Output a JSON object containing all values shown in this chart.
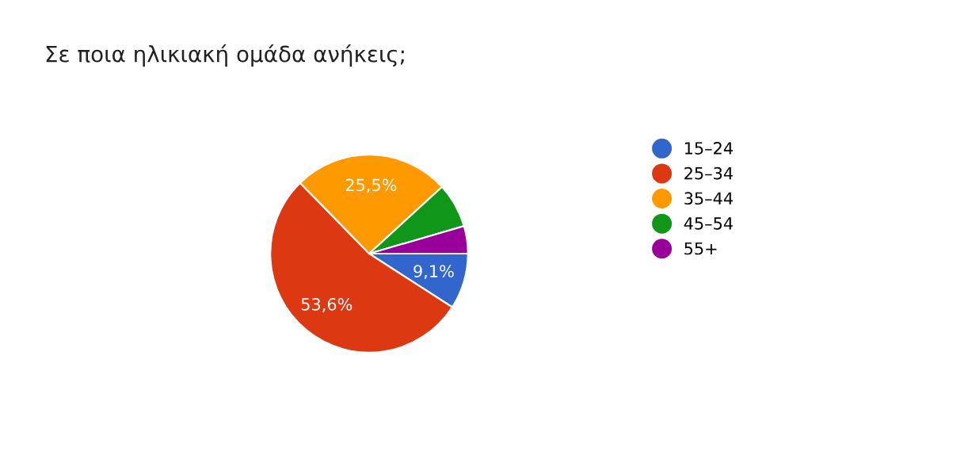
{
  "chart_data": {
    "type": "pie",
    "title": "Σε ποια ηλικιακή ομάδα ανήκεις;",
    "categories": [
      "15–24",
      "25–34",
      "35–44",
      "45–54",
      "55+"
    ],
    "values": [
      9.1,
      53.6,
      25.5,
      7.3,
      4.5
    ],
    "colors": [
      "#3366cc",
      "#dc3912",
      "#ff9900",
      "#109618",
      "#990099"
    ],
    "value_labels": [
      "9,1%",
      "53,6%",
      "25,5%",
      null,
      null
    ],
    "legend": "right"
  }
}
